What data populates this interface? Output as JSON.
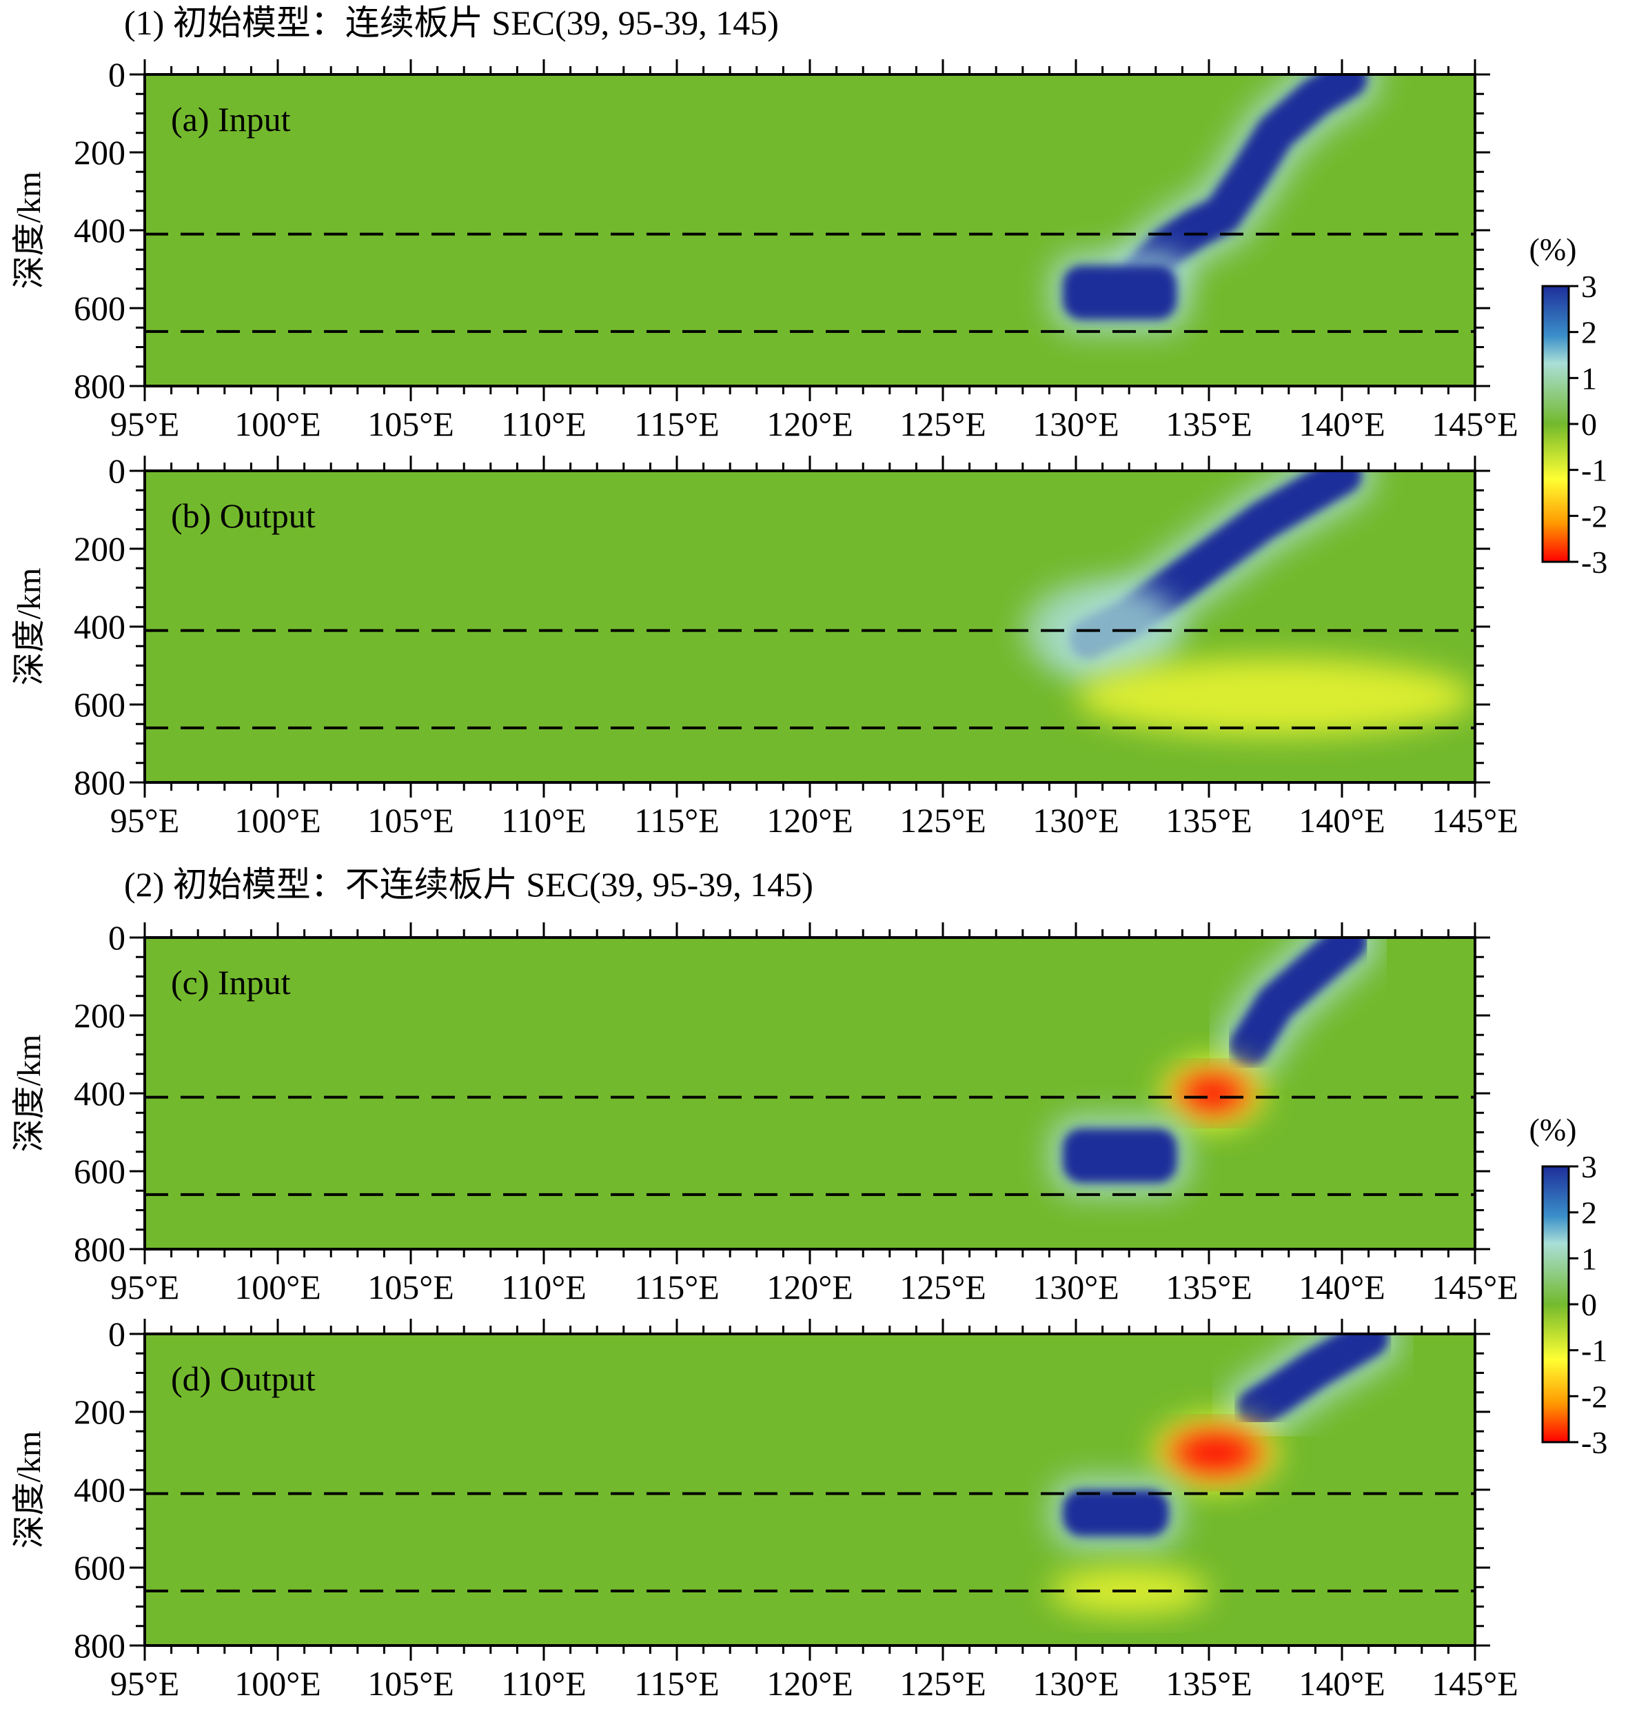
{
  "section_titles": [
    "(1) 初始模型：连续板片  SEC(39, 95-39, 145)",
    "(2) 初始模型：不连续板片  SEC(39, 95-39, 145)"
  ],
  "colorbar": {
    "title": "(%)",
    "ticks": [
      "3",
      "2",
      "1",
      "0",
      "-1",
      "-2",
      "-3"
    ],
    "range": [
      -3,
      3
    ],
    "colors": [
      "#ff0000",
      "#ffff33",
      "#73b92d",
      "#aadfd7",
      "#1e2e9a"
    ]
  },
  "chart_data": [
    {
      "type": "heatmap",
      "label": "(a) Input",
      "xlabel": "",
      "ylabel": "深度/km",
      "xlim": [
        95,
        145
      ],
      "ylim": [
        800,
        0
      ],
      "x_ticks": [
        "95°E",
        "100°E",
        "105°E",
        "110°E",
        "115°E",
        "120°E",
        "125°E",
        "130°E",
        "135°E",
        "140°E",
        "145°E"
      ],
      "y_ticks": [
        "0",
        "200",
        "400",
        "600",
        "800"
      ],
      "reference_depths": [
        410,
        660
      ],
      "anomalies": [
        {
          "shape": "slab",
          "path": [
            [
              140.2,
              10
            ],
            [
              139,
              60
            ],
            [
              137.5,
              150
            ],
            [
              136.5,
              260
            ],
            [
              135.5,
              360
            ],
            [
              134.5,
              395
            ],
            [
              133.5,
              440
            ],
            [
              132.5,
              510
            ]
          ],
          "value": 3
        },
        {
          "shape": "block",
          "lon": [
            129.5,
            133.8
          ],
          "depth": [
            490,
            630
          ],
          "value": 3
        }
      ]
    },
    {
      "type": "heatmap",
      "label": "(b) Output",
      "xlabel": "",
      "ylabel": "深度/km",
      "xlim": [
        95,
        145
      ],
      "ylim": [
        800,
        0
      ],
      "x_ticks": [
        "95°E",
        "100°E",
        "105°E",
        "110°E",
        "115°E",
        "120°E",
        "125°E",
        "130°E",
        "135°E",
        "140°E",
        "145°E"
      ],
      "y_ticks": [
        "0",
        "200",
        "400",
        "600",
        "800"
      ],
      "reference_depths": [
        410,
        660
      ],
      "anomalies": [
        {
          "shape": "slab",
          "path": [
            [
              140,
              10
            ],
            [
              137,
              130
            ],
            [
              134,
              280
            ],
            [
              132,
              380
            ],
            [
              130.5,
              430
            ]
          ],
          "value": 3
        },
        {
          "shape": "halo",
          "lon": [
            128,
            134
          ],
          "depth": [
            280,
            540
          ],
          "value": 1
        },
        {
          "shape": "blob",
          "lon": [
            130,
            145
          ],
          "depth": [
            480,
            680
          ],
          "value": -1
        }
      ]
    },
    {
      "type": "heatmap",
      "label": "(c) Input",
      "xlabel": "",
      "ylabel": "深度/km",
      "xlim": [
        95,
        145
      ],
      "ylim": [
        800,
        0
      ],
      "x_ticks": [
        "95°E",
        "100°E",
        "105°E",
        "110°E",
        "115°E",
        "120°E",
        "125°E",
        "130°E",
        "135°E",
        "140°E",
        "145°E"
      ],
      "y_ticks": [
        "0",
        "200",
        "400",
        "600",
        "800"
      ],
      "reference_depths": [
        410,
        660
      ],
      "anomalies": [
        {
          "shape": "slab",
          "path": [
            [
              140.2,
              10
            ],
            [
              139,
              80
            ],
            [
              137.5,
              170
            ],
            [
              136.5,
              280
            ]
          ],
          "value": 3
        },
        {
          "shape": "blob",
          "lon": [
            133.8,
            136.5
          ],
          "depth": [
            350,
            450
          ],
          "value": -3
        },
        {
          "shape": "block",
          "lon": [
            129.5,
            133.8
          ],
          "depth": [
            490,
            630
          ],
          "value": 3
        }
      ]
    },
    {
      "type": "heatmap",
      "label": "(d) Output",
      "xlabel": "",
      "ylabel": "深度/km",
      "xlim": [
        95,
        145
      ],
      "ylim": [
        800,
        0
      ],
      "x_ticks": [
        "95°E",
        "100°E",
        "105°E",
        "110°E",
        "115°E",
        "120°E",
        "125°E",
        "130°E",
        "135°E",
        "140°E",
        "145°E"
      ],
      "y_ticks": [
        "0",
        "200",
        "400",
        "600",
        "800"
      ],
      "reference_depths": [
        410,
        660
      ],
      "anomalies": [
        {
          "shape": "slab",
          "path": [
            [
              141,
              10
            ],
            [
              139,
              90
            ],
            [
              137.5,
              160
            ],
            [
              136.8,
              190
            ]
          ],
          "value": 3
        },
        {
          "shape": "blob",
          "lon": [
            133.5,
            137
          ],
          "depth": [
            250,
            360
          ],
          "value": -3
        },
        {
          "shape": "block",
          "lon": [
            129.5,
            133.5
          ],
          "depth": [
            400,
            520
          ],
          "value": 3
        },
        {
          "shape": "blob",
          "lon": [
            129,
            135
          ],
          "depth": [
            600,
            720
          ],
          "value": -1
        }
      ]
    }
  ]
}
